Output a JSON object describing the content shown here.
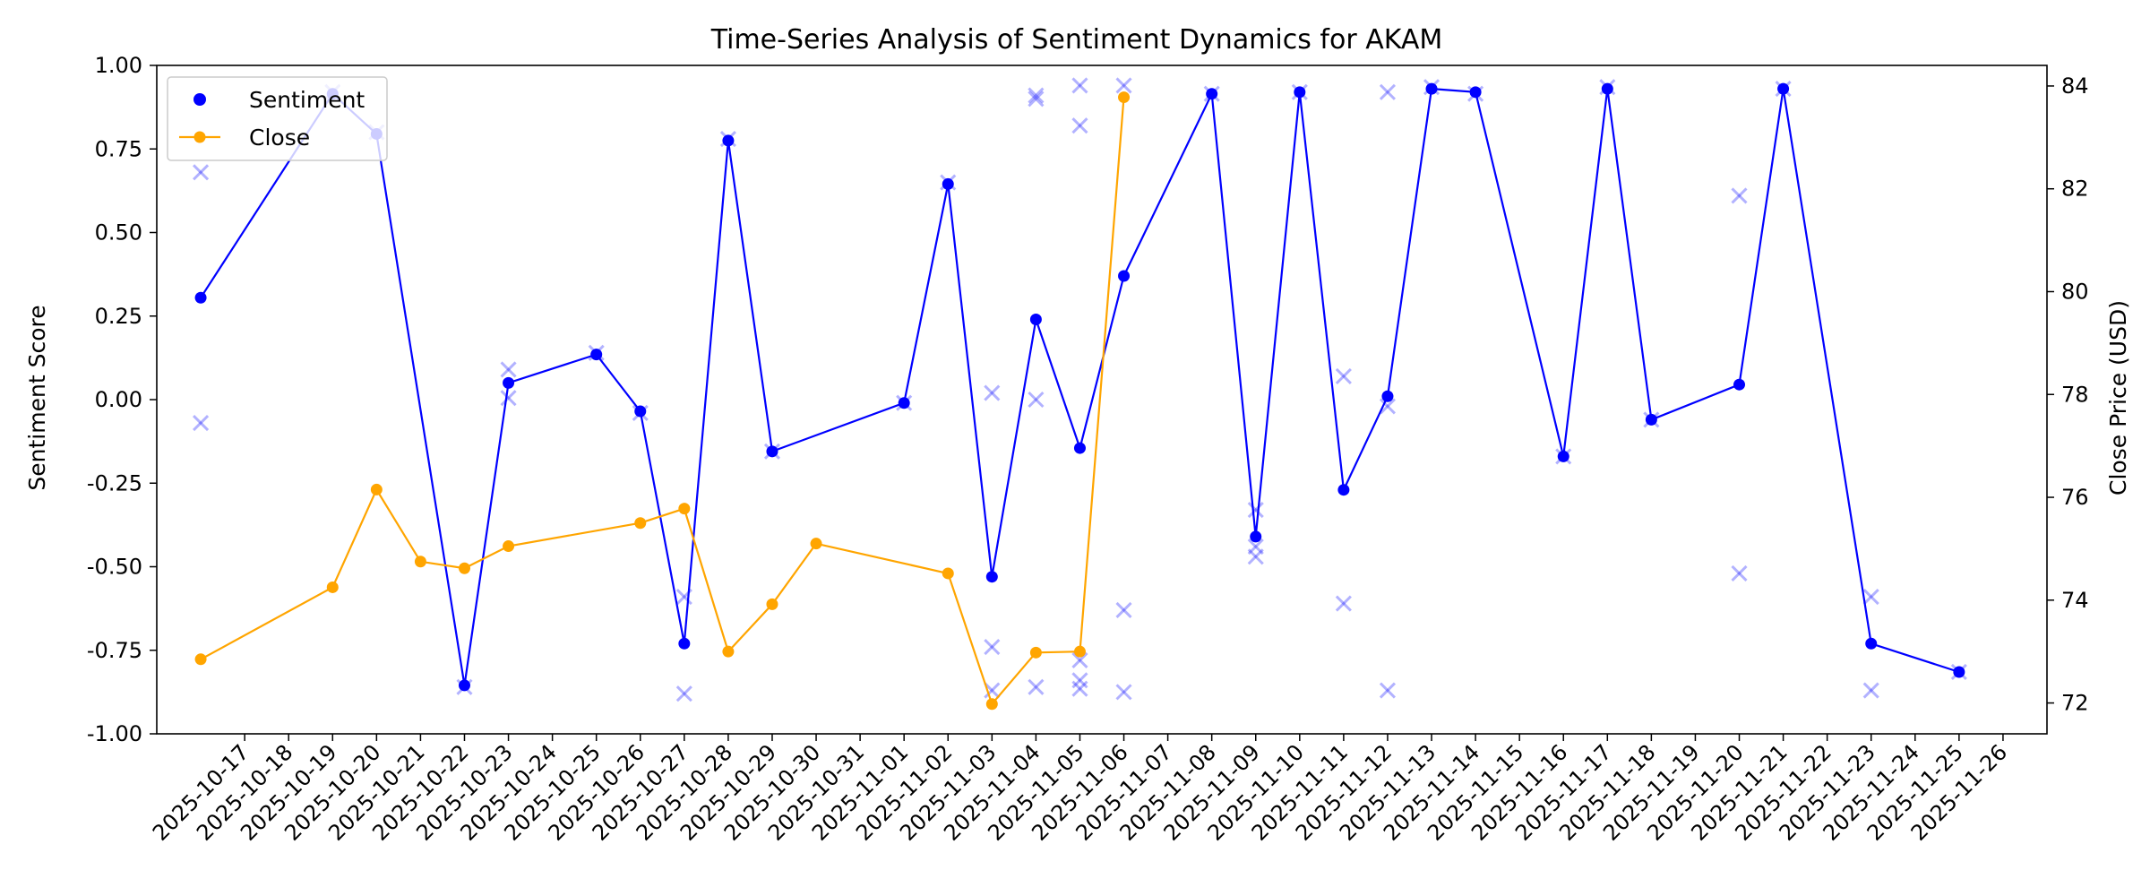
{
  "chart_data": {
    "type": "line",
    "title": "Time-Series Analysis of Sentiment Dynamics for AKAM",
    "xlabel": "",
    "ylabel": "Sentiment Score",
    "y2label": "Close Price (USD)",
    "ylim": [
      -1.0,
      1.0
    ],
    "y2lim": [
      71.4,
      84.4
    ],
    "xlim": [
      "2025-10-15",
      "2025-11-27"
    ],
    "yticks": [
      "-1.00",
      "-0.75",
      "-0.50",
      "-0.25",
      "0.00",
      "0.25",
      "0.50",
      "0.75",
      "1.00"
    ],
    "y2ticks": [
      "72",
      "74",
      "76",
      "78",
      "80",
      "82",
      "84"
    ],
    "x_tick_labels": [
      "2025-10-17",
      "2025-10-18",
      "2025-10-19",
      "2025-10-20",
      "2025-10-21",
      "2025-10-22",
      "2025-10-23",
      "2025-10-24",
      "2025-10-25",
      "2025-10-26",
      "2025-10-27",
      "2025-10-28",
      "2025-10-29",
      "2025-10-30",
      "2025-10-31",
      "2025-11-01",
      "2025-11-02",
      "2025-11-03",
      "2025-11-04",
      "2025-11-05",
      "2025-11-06",
      "2025-11-07",
      "2025-11-08",
      "2025-11-09",
      "2025-11-10",
      "2025-11-11",
      "2025-11-12",
      "2025-11-13",
      "2025-11-14",
      "2025-11-15",
      "2025-11-16",
      "2025-11-17",
      "2025-11-18",
      "2025-11-19",
      "2025-11-20",
      "2025-11-21",
      "2025-11-22",
      "2025-11-23",
      "2025-11-24",
      "2025-11-25",
      "2025-11-26"
    ],
    "grid": false,
    "legend_position": "top-left",
    "legend": [
      "Sentiment",
      "Close"
    ],
    "series": [
      {
        "name": "Sentiment",
        "axis": "left",
        "color": "#0000ff",
        "marker": "circle",
        "points": [
          {
            "x": "2025-10-16",
            "y": 0.305
          },
          {
            "x": "2025-10-19",
            "y": 0.915
          },
          {
            "x": "2025-10-20",
            "y": 0.795
          },
          {
            "x": "2025-10-22",
            "y": -0.855
          },
          {
            "x": "2025-10-23",
            "y": 0.05
          },
          {
            "x": "2025-10-25",
            "y": 0.135
          },
          {
            "x": "2025-10-26",
            "y": -0.035
          },
          {
            "x": "2025-10-27",
            "y": -0.73
          },
          {
            "x": "2025-10-28",
            "y": 0.775
          },
          {
            "x": "2025-10-29",
            "y": -0.155
          },
          {
            "x": "2025-11-01",
            "y": -0.01
          },
          {
            "x": "2025-11-02",
            "y": 0.645
          },
          {
            "x": "2025-11-03",
            "y": -0.53
          },
          {
            "x": "2025-11-04",
            "y": 0.24
          },
          {
            "x": "2025-11-05",
            "y": -0.145
          },
          {
            "x": "2025-11-06",
            "y": 0.37
          },
          {
            "x": "2025-11-08",
            "y": 0.915
          },
          {
            "x": "2025-11-09",
            "y": -0.41
          },
          {
            "x": "2025-11-10",
            "y": 0.92
          },
          {
            "x": "2025-11-11",
            "y": -0.27
          },
          {
            "x": "2025-11-12",
            "y": 0.01
          },
          {
            "x": "2025-11-13",
            "y": 0.93
          },
          {
            "x": "2025-11-14",
            "y": 0.92
          },
          {
            "x": "2025-11-16",
            "y": -0.17
          },
          {
            "x": "2025-11-17",
            "y": 0.93
          },
          {
            "x": "2025-11-18",
            "y": -0.06
          },
          {
            "x": "2025-11-20",
            "y": 0.045
          },
          {
            "x": "2025-11-21",
            "y": 0.93
          },
          {
            "x": "2025-11-23",
            "y": -0.73
          },
          {
            "x": "2025-11-25",
            "y": -0.815
          }
        ]
      },
      {
        "name": "Close",
        "axis": "right",
        "color": "#ffa500",
        "marker": "circle",
        "points": [
          {
            "x": "2025-10-16",
            "y": 72.85
          },
          {
            "x": "2025-10-19",
            "y": 74.25
          },
          {
            "x": "2025-10-20",
            "y": 76.15
          },
          {
            "x": "2025-10-21",
            "y": 74.75
          },
          {
            "x": "2025-10-22",
            "y": 74.62
          },
          {
            "x": "2025-10-23",
            "y": 75.05
          },
          {
            "x": "2025-10-26",
            "y": 75.5
          },
          {
            "x": "2025-10-27",
            "y": 75.78
          },
          {
            "x": "2025-10-28",
            "y": 73.0
          },
          {
            "x": "2025-10-29",
            "y": 73.92
          },
          {
            "x": "2025-10-30",
            "y": 75.1
          },
          {
            "x": "2025-11-02",
            "y": 74.52
          },
          {
            "x": "2025-11-03",
            "y": 71.98
          },
          {
            "x": "2025-11-04",
            "y": 72.98
          },
          {
            "x": "2025-11-05",
            "y": 73.0
          },
          {
            "x": "2025-11-06",
            "y": 83.78
          }
        ]
      }
    ],
    "scatter_marks": {
      "marker": "x",
      "color": "#0000ff",
      "points": [
        {
          "x": "2025-10-16",
          "y": 0.68
        },
        {
          "x": "2025-10-16",
          "y": -0.07
        },
        {
          "x": "2025-10-19",
          "y": 0.92
        },
        {
          "x": "2025-10-20",
          "y": 0.8
        },
        {
          "x": "2025-10-22",
          "y": -0.86
        },
        {
          "x": "2025-10-23",
          "y": 0.09
        },
        {
          "x": "2025-10-23",
          "y": 0.005
        },
        {
          "x": "2025-10-25",
          "y": 0.14
        },
        {
          "x": "2025-10-26",
          "y": -0.04
        },
        {
          "x": "2025-10-27",
          "y": -0.59
        },
        {
          "x": "2025-10-27",
          "y": -0.88
        },
        {
          "x": "2025-10-28",
          "y": 0.78
        },
        {
          "x": "2025-10-29",
          "y": -0.155
        },
        {
          "x": "2025-11-01",
          "y": -0.01
        },
        {
          "x": "2025-11-02",
          "y": 0.65
        },
        {
          "x": "2025-11-03",
          "y": 0.02
        },
        {
          "x": "2025-11-03",
          "y": -0.74
        },
        {
          "x": "2025-11-03",
          "y": -0.87
        },
        {
          "x": "2025-11-04",
          "y": 0.91
        },
        {
          "x": "2025-11-04",
          "y": 0.9
        },
        {
          "x": "2025-11-04",
          "y": 0.0
        },
        {
          "x": "2025-11-04",
          "y": -0.86
        },
        {
          "x": "2025-11-05",
          "y": 0.94
        },
        {
          "x": "2025-11-05",
          "y": 0.82
        },
        {
          "x": "2025-11-05",
          "y": -0.78
        },
        {
          "x": "2025-11-05",
          "y": -0.84
        },
        {
          "x": "2025-11-05",
          "y": -0.865
        },
        {
          "x": "2025-11-06",
          "y": 0.94
        },
        {
          "x": "2025-11-06",
          "y": -0.63
        },
        {
          "x": "2025-11-06",
          "y": -0.875
        },
        {
          "x": "2025-11-08",
          "y": 0.915
        },
        {
          "x": "2025-11-09",
          "y": -0.33
        },
        {
          "x": "2025-11-09",
          "y": -0.44
        },
        {
          "x": "2025-11-09",
          "y": -0.47
        },
        {
          "x": "2025-11-10",
          "y": 0.92
        },
        {
          "x": "2025-11-11",
          "y": 0.07
        },
        {
          "x": "2025-11-11",
          "y": -0.61
        },
        {
          "x": "2025-11-12",
          "y": 0.92
        },
        {
          "x": "2025-11-12",
          "y": -0.02
        },
        {
          "x": "2025-11-12",
          "y": -0.87
        },
        {
          "x": "2025-11-13",
          "y": 0.935
        },
        {
          "x": "2025-11-14",
          "y": 0.915
        },
        {
          "x": "2025-11-16",
          "y": -0.17
        },
        {
          "x": "2025-11-17",
          "y": 0.935
        },
        {
          "x": "2025-11-18",
          "y": -0.06
        },
        {
          "x": "2025-11-20",
          "y": 0.61
        },
        {
          "x": "2025-11-20",
          "y": -0.52
        },
        {
          "x": "2025-11-21",
          "y": 0.93
        },
        {
          "x": "2025-11-23",
          "y": -0.59
        },
        {
          "x": "2025-11-23",
          "y": -0.87
        },
        {
          "x": "2025-11-25",
          "y": -0.815
        }
      ]
    }
  }
}
